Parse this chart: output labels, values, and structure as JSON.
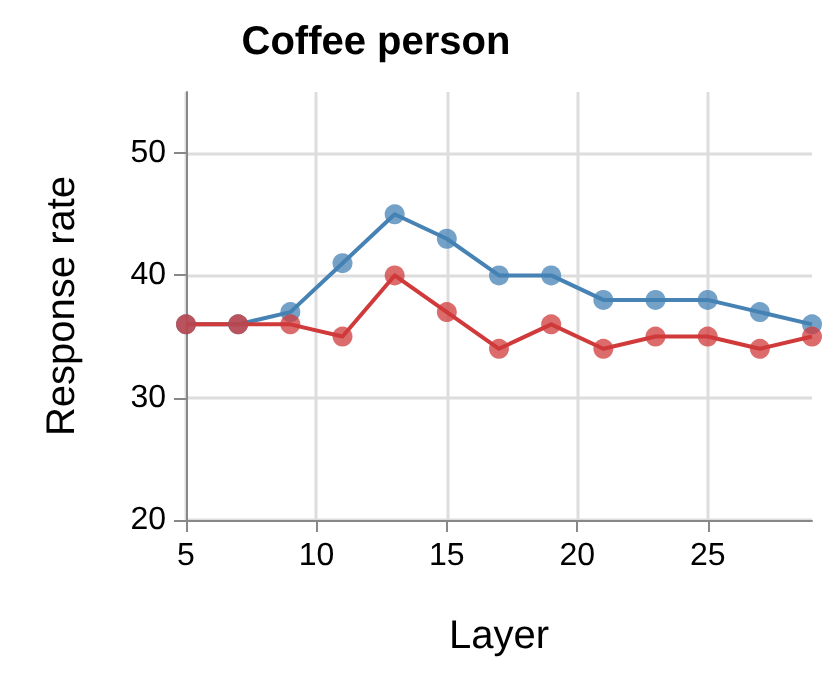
{
  "chart_data": {
    "type": "line",
    "title": "Coffee person",
    "xlabel": "Layer",
    "ylabel": "Response rate",
    "x": [
      5,
      7,
      9,
      11,
      13,
      15,
      17,
      19,
      21,
      23,
      25,
      27,
      29
    ],
    "series": [
      {
        "color": "#4682b4",
        "values": [
          36,
          36,
          37,
          41,
          45,
          43,
          40,
          40,
          38,
          38,
          38,
          37,
          36
        ]
      },
      {
        "color": "#d03a3a",
        "values": [
          36,
          36,
          36,
          35,
          40,
          37,
          34,
          36,
          34,
          35,
          35,
          34,
          35
        ]
      }
    ],
    "xlim": [
      5,
      29
    ],
    "xticks": [
      5,
      10,
      15,
      20,
      25
    ],
    "ylim": [
      20,
      55
    ],
    "yticks": [
      20,
      30,
      40,
      50
    ],
    "grid": true,
    "marker": "circle",
    "line_style": "solid"
  }
}
